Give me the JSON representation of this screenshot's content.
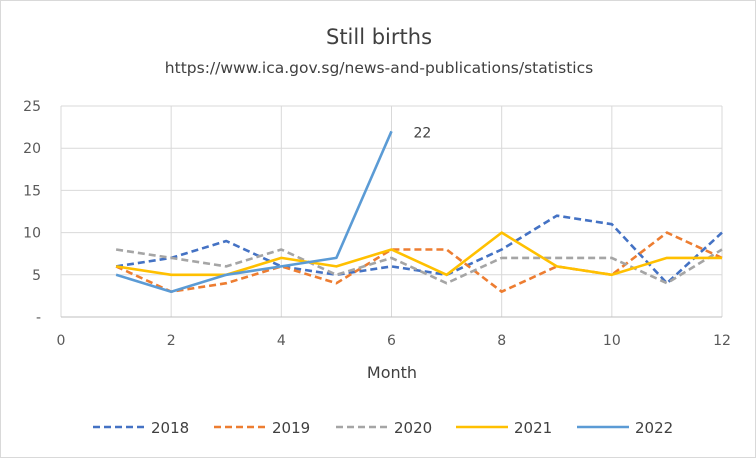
{
  "chart_data": {
    "type": "line",
    "title": "Still births",
    "subtitle": "https://www.ica.gov.sg/news-and-publications/statistics",
    "xlabel": "Month",
    "ylabel": "",
    "xlim": [
      0,
      12
    ],
    "ylim": [
      0,
      25
    ],
    "x_ticks": [
      0,
      2,
      4,
      6,
      8,
      10,
      12
    ],
    "y_ticks": [
      "-",
      "5",
      "10",
      "15",
      "20",
      "25"
    ],
    "grid": true,
    "legend_position": "bottom",
    "series": [
      {
        "name": "2018",
        "color": "#4472c4",
        "style": "dashed",
        "x": [
          1,
          2,
          3,
          4,
          5,
          6,
          7,
          8,
          9,
          10,
          11,
          12
        ],
        "y": [
          6,
          7,
          9,
          6,
          5,
          6,
          5,
          8,
          12,
          11,
          4,
          10
        ]
      },
      {
        "name": "2019",
        "color": "#ed7d31",
        "style": "dashed",
        "x": [
          1,
          2,
          3,
          4,
          5,
          6,
          7,
          8,
          9,
          10,
          11,
          12
        ],
        "y": [
          6,
          3,
          4,
          6,
          4,
          8,
          8,
          3,
          6,
          5,
          10,
          7
        ]
      },
      {
        "name": "2020",
        "color": "#a5a5a5",
        "style": "dashed",
        "x": [
          1,
          2,
          3,
          4,
          5,
          6,
          7,
          8,
          9,
          10,
          11,
          12
        ],
        "y": [
          8,
          7,
          6,
          8,
          5,
          7,
          4,
          7,
          7,
          7,
          4,
          8
        ]
      },
      {
        "name": "2021",
        "color": "#ffc000",
        "style": "solid",
        "x": [
          1,
          2,
          3,
          4,
          5,
          6,
          7,
          8,
          9,
          10,
          11,
          12
        ],
        "y": [
          6,
          5,
          5,
          7,
          6,
          8,
          5,
          10,
          6,
          5,
          7,
          7
        ]
      },
      {
        "name": "2022",
        "color": "#5b9bd5",
        "style": "solid",
        "x": [
          1,
          2,
          3,
          4,
          5,
          6
        ],
        "y": [
          5,
          3,
          5,
          6,
          7,
          22
        ]
      }
    ],
    "annotations": [
      {
        "series": "2022",
        "x": 6,
        "label": "22"
      }
    ]
  }
}
